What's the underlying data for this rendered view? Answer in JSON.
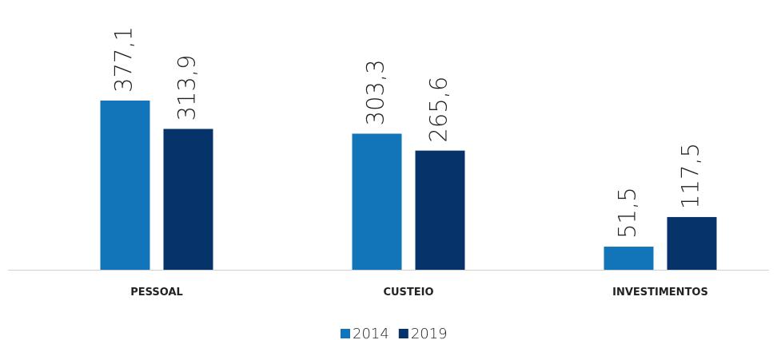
{
  "chart_data": {
    "type": "bar",
    "categories": [
      "PESSOAL",
      "CUSTEIO",
      "INVESTIMENTOS"
    ],
    "series": [
      {
        "name": "2014",
        "color": "#1275b9",
        "values": [
          377.1,
          303.3,
          51.5
        ],
        "value_labels": [
          "377,1",
          "303,3",
          "51,5"
        ]
      },
      {
        "name": "2019",
        "color": "#07336b",
        "values": [
          313.9,
          265.6,
          117.5
        ],
        "value_labels": [
          "313,9",
          "265,6",
          "117,5"
        ]
      }
    ]
  }
}
